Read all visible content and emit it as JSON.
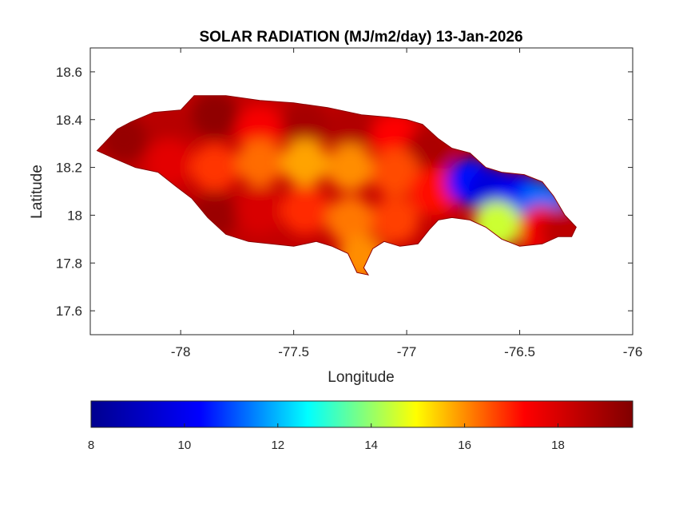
{
  "title": "SOLAR RADIATION (MJ/m2/day) 13-Jan-2026",
  "xlabel": "Longitude",
  "ylabel": "Latitude",
  "xaxis": {
    "min": -78.4,
    "max": -76,
    "ticks": [
      -78,
      -77.5,
      -77,
      -76.5,
      -76
    ],
    "tick_labels": [
      "-78",
      "-77.5",
      "-77",
      "-76.5",
      "-76"
    ]
  },
  "yaxis": {
    "min": 17.5,
    "max": 18.7,
    "ticks": [
      17.6,
      17.8,
      18,
      18.2,
      18.4,
      18.6
    ],
    "tick_labels": [
      "17.6",
      "17.8",
      "18",
      "18.2",
      "18.4",
      "18.6"
    ]
  },
  "colorbar": {
    "colormap": "jet",
    "min": 8,
    "max": 19.6,
    "ticks": [
      8,
      10,
      12,
      14,
      16,
      18
    ],
    "tick_labels": [
      "8",
      "10",
      "12",
      "14",
      "16",
      "18"
    ],
    "colors": [
      "#00008f",
      "#0000ff",
      "#00ffff",
      "#ffff00",
      "#ff0000",
      "#800000"
    ]
  },
  "chart_data": {
    "type": "heatmap",
    "variable": "SOLAR RADIATION (MJ/m2/day)",
    "date": "13-Jan-2026",
    "x_range": [
      -78.4,
      -76
    ],
    "y_range": [
      17.5,
      18.7
    ],
    "value_range": [
      8,
      19.6
    ],
    "region_outline": [
      [
        -78.37,
        18.27
      ],
      [
        -78.33,
        18.31
      ],
      [
        -78.28,
        18.36
      ],
      [
        -78.22,
        18.39
      ],
      [
        -78.12,
        18.43
      ],
      [
        -78.0,
        18.44
      ],
      [
        -77.94,
        18.5
      ],
      [
        -77.8,
        18.5
      ],
      [
        -77.65,
        18.48
      ],
      [
        -77.5,
        18.47
      ],
      [
        -77.35,
        18.45
      ],
      [
        -77.2,
        18.42
      ],
      [
        -77.08,
        18.41
      ],
      [
        -77.0,
        18.4
      ],
      [
        -76.93,
        18.38
      ],
      [
        -76.86,
        18.32
      ],
      [
        -76.8,
        18.28
      ],
      [
        -76.72,
        18.26
      ],
      [
        -76.65,
        18.2
      ],
      [
        -76.58,
        18.18
      ],
      [
        -76.48,
        18.17
      ],
      [
        -76.4,
        18.14
      ],
      [
        -76.35,
        18.08
      ],
      [
        -76.3,
        18.0
      ],
      [
        -76.25,
        17.95
      ],
      [
        -76.27,
        17.91
      ],
      [
        -76.33,
        17.91
      ],
      [
        -76.4,
        17.88
      ],
      [
        -76.5,
        17.87
      ],
      [
        -76.58,
        17.9
      ],
      [
        -76.65,
        17.95
      ],
      [
        -76.72,
        17.98
      ],
      [
        -76.8,
        17.99
      ],
      [
        -76.86,
        17.98
      ],
      [
        -76.9,
        17.94
      ],
      [
        -76.95,
        17.88
      ],
      [
        -77.03,
        17.87
      ],
      [
        -77.1,
        17.89
      ],
      [
        -77.15,
        17.86
      ],
      [
        -77.19,
        17.78
      ],
      [
        -77.17,
        17.75
      ],
      [
        -77.22,
        17.76
      ],
      [
        -77.26,
        17.84
      ],
      [
        -77.33,
        17.87
      ],
      [
        -77.4,
        17.89
      ],
      [
        -77.5,
        17.87
      ],
      [
        -77.6,
        17.88
      ],
      [
        -77.7,
        17.89
      ],
      [
        -77.8,
        17.92
      ],
      [
        -77.88,
        17.99
      ],
      [
        -77.95,
        18.07
      ],
      [
        -78.02,
        18.12
      ],
      [
        -78.1,
        18.18
      ],
      [
        -78.2,
        18.2
      ],
      [
        -78.3,
        18.24
      ]
    ],
    "cells": [
      {
        "lon": -78.25,
        "lat": 18.32,
        "value": 19.2
      },
      {
        "lon": -78.05,
        "lat": 18.36,
        "value": 18.6
      },
      {
        "lon": -77.85,
        "lat": 18.42,
        "value": 19.3
      },
      {
        "lon": -77.65,
        "lat": 18.36,
        "value": 17.4
      },
      {
        "lon": -77.45,
        "lat": 18.38,
        "value": 18.9
      },
      {
        "lon": -77.25,
        "lat": 18.36,
        "value": 18.7
      },
      {
        "lon": -77.05,
        "lat": 18.33,
        "value": 17.3
      },
      {
        "lon": -76.9,
        "lat": 18.27,
        "value": 18.8
      },
      {
        "lon": -78.05,
        "lat": 18.22,
        "value": 17.8
      },
      {
        "lon": -77.85,
        "lat": 18.2,
        "value": 16.8
      },
      {
        "lon": -77.65,
        "lat": 18.22,
        "value": 16.3
      },
      {
        "lon": -77.45,
        "lat": 18.22,
        "value": 15.8
      },
      {
        "lon": -77.25,
        "lat": 18.2,
        "value": 16.0
      },
      {
        "lon": -77.05,
        "lat": 18.18,
        "value": 16.6
      },
      {
        "lon": -76.88,
        "lat": 18.1,
        "value": 17.2
      },
      {
        "lon": -77.85,
        "lat": 18.0,
        "value": 19.1
      },
      {
        "lon": -77.65,
        "lat": 18.02,
        "value": 18.0
      },
      {
        "lon": -77.45,
        "lat": 18.02,
        "value": 16.9
      },
      {
        "lon": -77.25,
        "lat": 17.98,
        "value": 16.2
      },
      {
        "lon": -77.05,
        "lat": 17.98,
        "value": 16.7
      },
      {
        "lon": -77.2,
        "lat": 17.82,
        "value": 16.0
      },
      {
        "lon": -76.72,
        "lat": 18.14,
        "value": 10.4
      },
      {
        "lon": -76.62,
        "lat": 18.1,
        "value": 9.6
      },
      {
        "lon": -76.5,
        "lat": 18.08,
        "value": 10.1
      },
      {
        "lon": -76.4,
        "lat": 18.04,
        "value": 11.3
      },
      {
        "lon": -76.6,
        "lat": 17.96,
        "value": 14.5
      },
      {
        "lon": -76.4,
        "lat": 17.94,
        "value": 17.5
      },
      {
        "lon": -76.3,
        "lat": 17.93,
        "value": 18.5
      }
    ]
  }
}
